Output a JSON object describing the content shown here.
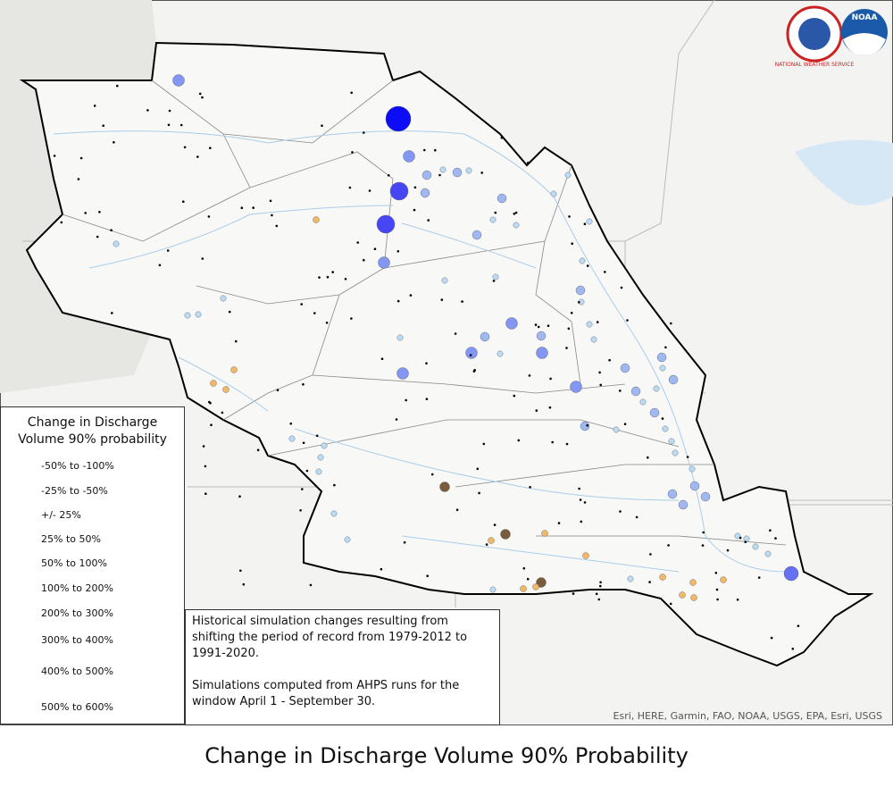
{
  "caption": "Change in Discharge Volume 90% Probability",
  "logos": {
    "nws": "NATIONAL WEATHER SERVICE",
    "noaa": "NOAA"
  },
  "legend": {
    "title": "Change in Discharge Volume 90% probability",
    "items": [
      "-50% to -100%",
      "-25% to -50%",
      "+/- 25%",
      "25% to 50%",
      "50% to 100%",
      "100% to 200%",
      "200% to 300%",
      "300% to 400%",
      "400% to 500%",
      "500% to 600%"
    ]
  },
  "note": {
    "paragraphs": [
      "Historical simulation changes resulting from shifting the period of record from 1979-2012 to 1991-2020.",
      "Simulations computed from AHPS runs for the window April 1 - September 30."
    ]
  },
  "attribution": "Esri, HERE, Garmin, FAO, NOAA, USGS, EPA, Esri, USGS"
}
